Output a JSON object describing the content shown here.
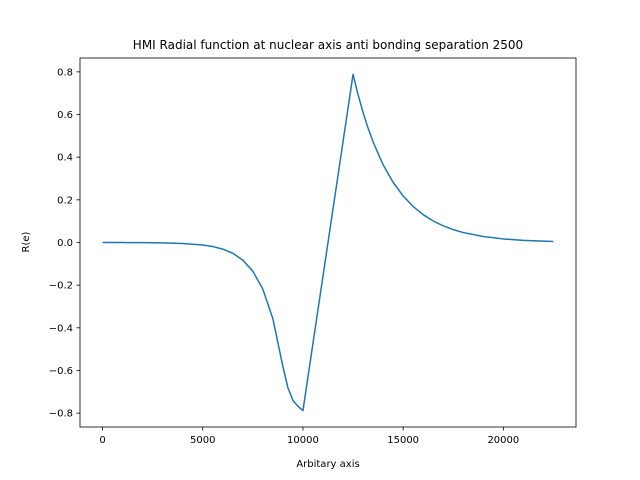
{
  "chart_data": {
    "type": "line",
    "title": "HMI Radial function at nuclear axis anti bonding separation 2500",
    "xlabel": "Arbitary axis",
    "ylabel": "R(e)",
    "xlim": [
      -1125,
      23625
    ],
    "ylim": [
      -0.865,
      0.865
    ],
    "xticks": [
      0,
      5000,
      10000,
      15000,
      20000
    ],
    "yticks": [
      -0.8,
      -0.6,
      -0.4,
      -0.2,
      0.0,
      0.2,
      0.4,
      0.6,
      0.8
    ],
    "xtick_labels": [
      "0",
      "5000",
      "10000",
      "15000",
      "20000"
    ],
    "ytick_labels": [
      "−0.8",
      "−0.6",
      "−0.4",
      "−0.2",
      "0.0",
      "0.2",
      "0.4",
      "0.6",
      "0.8"
    ],
    "grid": false,
    "line_color": "#1f77b4",
    "series": [
      {
        "x": [
          0,
          1000,
          2000,
          3000,
          4000,
          5000,
          5500,
          6000,
          6500,
          7000,
          7500,
          8000,
          8500,
          9000,
          9250,
          9500,
          9750,
          10000,
          10625,
          11250,
          11875,
          12500,
          12750,
          13000,
          13250,
          13500,
          14000,
          14500,
          15000,
          15500,
          16000,
          16500,
          17000,
          17500,
          18000,
          19000,
          20000,
          21000,
          22500
        ],
        "y": [
          -0.0001,
          -0.0003,
          -0.0007,
          -0.0017,
          -0.0044,
          -0.0117,
          -0.019,
          -0.031,
          -0.0506,
          -0.0825,
          -0.1345,
          -0.2192,
          -0.3573,
          -0.5823,
          -0.6815,
          -0.74,
          -0.768,
          -0.788,
          -0.394,
          0.0,
          0.394,
          0.788,
          0.693,
          0.6095,
          0.536,
          0.4714,
          0.3645,
          0.2819,
          0.218,
          0.1686,
          0.1304,
          0.1008,
          0.078,
          0.0603,
          0.0466,
          0.028,
          0.0167,
          0.01,
          0.0047
        ]
      }
    ]
  }
}
